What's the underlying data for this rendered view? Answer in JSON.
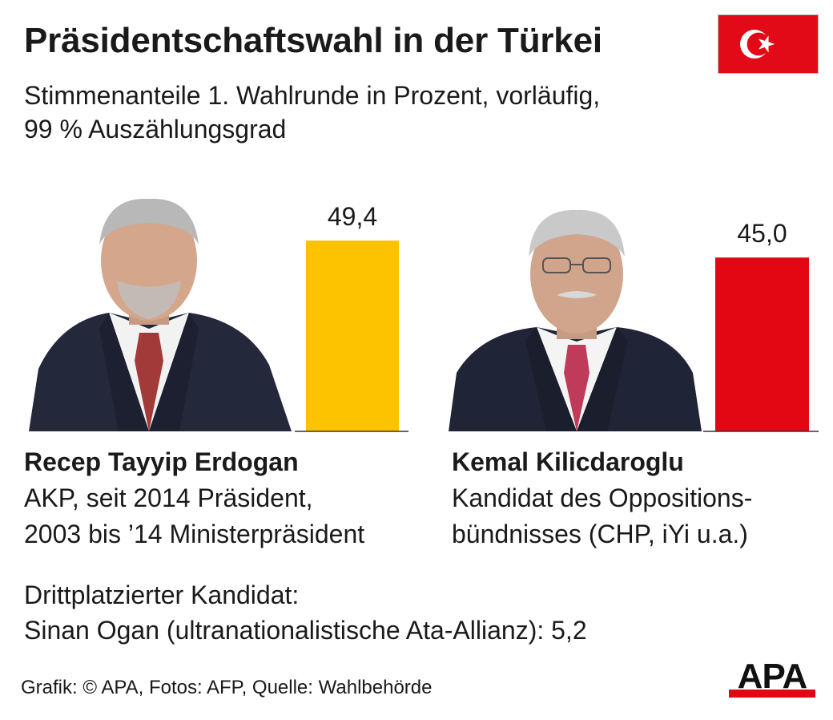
{
  "header": {
    "title": "Präsidentschaftswahl in der Türkei",
    "subtitle_line1": "Stimmenanteile 1. Wahlrunde in Prozent, vorläufig,",
    "subtitle_line2": "99 % Auszählungsgrad"
  },
  "flag": {
    "icon": "turkey-flag-icon",
    "color": "#e30a17"
  },
  "chart_data": {
    "type": "bar",
    "title": "Präsidentschaftswahl in der Türkei",
    "subtitle": "Stimmenanteile 1. Wahlrunde in Prozent, vorläufig, 99 % Auszählungsgrad",
    "categories": [
      "Recep Tayyip Erdogan",
      "Kemal Kilicdaroglu"
    ],
    "values": [
      49.4,
      45.0
    ],
    "value_labels": [
      "49,4",
      "45,0"
    ],
    "colors": [
      "#fdc300",
      "#e30613"
    ],
    "ylim": [
      0,
      49.4
    ],
    "grid": false
  },
  "candidates": [
    {
      "name": "Recep Tayyip Erdogan",
      "desc_line1": "AKP, seit 2014 Präsident,",
      "desc_line2": "2003 bis ’14 Ministerpräsident",
      "photo_icon": "erdogan-photo"
    },
    {
      "name": "Kemal Kilicdaroglu",
      "desc_line1": "Kandidat des Oppositions-",
      "desc_line2": "bündnisses (CHP, iYi u.a.)",
      "photo_icon": "kilicdaroglu-photo"
    }
  ],
  "third": {
    "line1": "Drittplatzierter Kandidat:",
    "line2": "Sinan Ogan (ultranationalistische Ata-Allianz): 5,2"
  },
  "footer": {
    "source": "Grafik: © APA, Fotos: AFP, Quelle: Wahlbehörde",
    "logo_text": "APA",
    "logo_color": "#e30613"
  }
}
